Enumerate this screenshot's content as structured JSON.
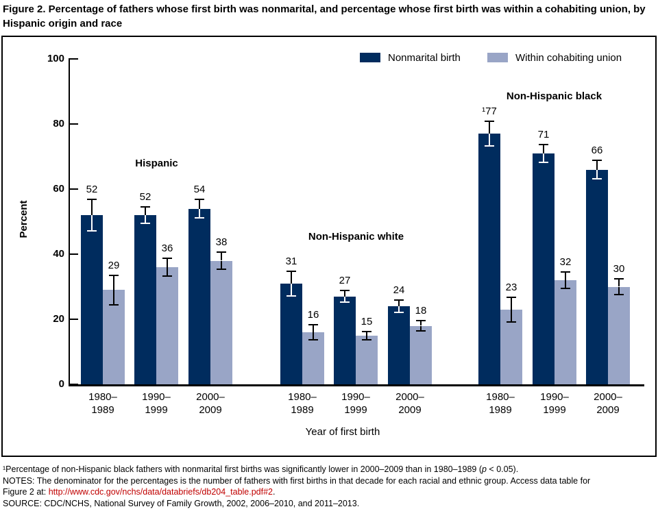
{
  "page": {
    "title": "Figure 2. Percentage of fathers whose first birth was nonmarital, and percentage whose first birth was within a cohabiting union, by Hispanic origin and race"
  },
  "colors": {
    "bar_dark": "#002c5e",
    "bar_light": "#99a5c6",
    "axis": "#000000",
    "error_on_dark": "#ffffff",
    "error_on_light": "#000000",
    "link": "#c00000"
  },
  "chart_data": {
    "type": "bar",
    "title": "Figure 2. Percentage of fathers whose first birth was nonmarital, and percentage whose first birth was within a cohabiting union, by Hispanic origin and race",
    "xlabel": "Year of first birth",
    "ylabel": "Percent",
    "ylim": [
      0,
      100
    ],
    "yticks": [
      0,
      20,
      40,
      60,
      80,
      100
    ],
    "grid": false,
    "legend_position": "top-right-inside",
    "legend": [
      {
        "label": "Nonmarital birth",
        "color": "#002c5e"
      },
      {
        "label": "Within cohabiting union",
        "color": "#99a5c6"
      }
    ],
    "error_bars": true,
    "groups": [
      {
        "label": "Hispanic",
        "categories": [
          "1980–\n1989",
          "1990–\n1999",
          "2000–\n2009"
        ],
        "series": [
          {
            "name": "Nonmarital birth",
            "values": [
              52,
              52,
              54
            ],
            "labels": [
              "52",
              "52",
              "54"
            ],
            "errors": [
              5,
              2.7,
              3
            ]
          },
          {
            "name": "Within cohabiting union",
            "values": [
              29,
              36,
              38
            ],
            "labels": [
              "29",
              "36",
              "38"
            ],
            "errors": [
              4.7,
              2.9,
              2.8
            ]
          }
        ]
      },
      {
        "label": "Non-Hispanic white",
        "categories": [
          "1980–\n1989",
          "1990–\n1999",
          "2000–\n2009"
        ],
        "series": [
          {
            "name": "Nonmarital birth",
            "values": [
              31,
              27,
              24
            ],
            "labels": [
              "31",
              "27",
              "24"
            ],
            "errors": [
              4,
              2,
              2.2
            ]
          },
          {
            "name": "Within cohabiting union",
            "values": [
              16,
              15,
              18
            ],
            "labels": [
              "16",
              "15",
              "18"
            ],
            "errors": [
              2.6,
              1.5,
              1.7
            ]
          }
        ]
      },
      {
        "label": "Non-Hispanic black",
        "categories": [
          "1980–\n1989",
          "1990–\n1999",
          "2000–\n2009"
        ],
        "series": [
          {
            "name": "Nonmarital birth",
            "values": [
              77,
              71,
              66
            ],
            "labels": [
              "¹77",
              "71",
              "66"
            ],
            "errors": [
              4,
              3,
              3
            ]
          },
          {
            "name": "Within cohabiting union",
            "values": [
              23,
              32,
              30
            ],
            "labels": [
              "23",
              "32",
              "30"
            ],
            "errors": [
              4,
              2.8,
              2.7
            ]
          }
        ]
      }
    ]
  },
  "footnotes": {
    "note1_pre": "¹Percentage of non-Hispanic black fathers with nonmarital first births was significantly lower in 2000–2009 than in 1980–1989 (",
    "note1_italic": "p",
    "note1_post": " < 0.05).",
    "notes_line1": "NOTES: The denominator for the percentages is the number of fathers with first births in that decade for each racial and ethnic group. Access data table for",
    "notes_line2_pre": "Figure 2 at: ",
    "link_text": "http://www.cdc.gov/nchs/data/databriefs/db204_table.pdf#2",
    "notes_line2_post": ".",
    "source": "SOURCE: CDC/NCHS, National Survey of Family Growth, 2002, 2006–2010, and 2011–2013."
  }
}
